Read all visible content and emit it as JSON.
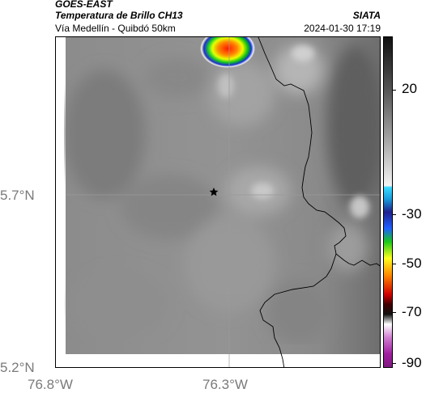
{
  "header": {
    "satellite": "GOES-EAST",
    "product": "Temperatura de Brillo CH13",
    "location": "Vía Medellín - Quibdó 50km",
    "organization": "SIATA",
    "timestamp": "2024-01-30 17:19"
  },
  "axes": {
    "y_ticks": [
      "5.7°N",
      "5.2°N"
    ],
    "x_ticks": [
      "76.8°W",
      "76.3°W"
    ]
  },
  "colorbar": {
    "labels": [
      "20",
      "-30",
      "-50",
      "-70",
      "-90"
    ]
  },
  "map": {
    "marker": "star-icon",
    "colors": {
      "background_gray": "#8a8a8a",
      "border_line": "#000000",
      "cold_core": "#ff2a00"
    }
  }
}
